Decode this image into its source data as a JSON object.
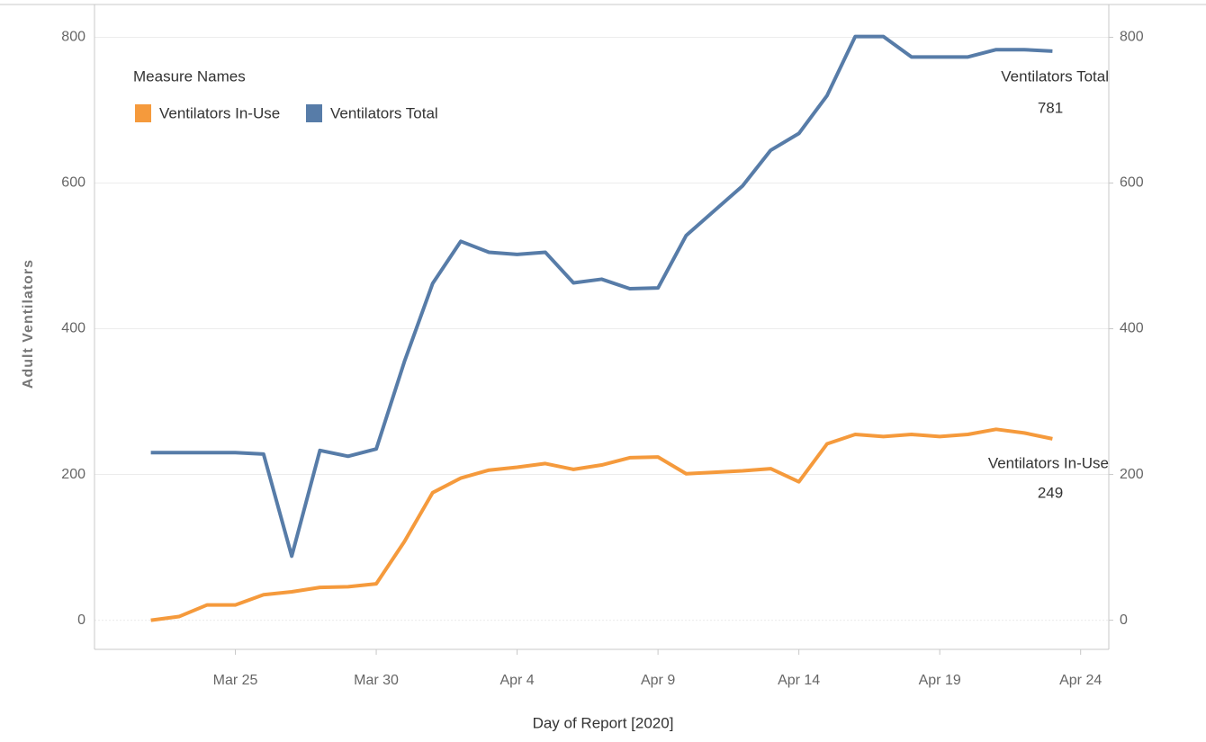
{
  "chart_data": {
    "type": "line",
    "x_label": "Day of Report [2020]",
    "y_label": "Adult Ventilators",
    "legend_title": "Measure Names",
    "legend": "top-left",
    "grid": true,
    "x": [
      "2020-03-22",
      "2020-03-23",
      "2020-03-24",
      "2020-03-25",
      "2020-03-26",
      "2020-03-27",
      "2020-03-28",
      "2020-03-29",
      "2020-03-30",
      "2020-03-31",
      "2020-04-01",
      "2020-04-02",
      "2020-04-03",
      "2020-04-04",
      "2020-04-05",
      "2020-04-06",
      "2020-04-07",
      "2020-04-08",
      "2020-04-09",
      "2020-04-10",
      "2020-04-11",
      "2020-04-12",
      "2020-04-13",
      "2020-04-14",
      "2020-04-15",
      "2020-04-16",
      "2020-04-17",
      "2020-04-18",
      "2020-04-19",
      "2020-04-20",
      "2020-04-21",
      "2020-04-22",
      "2020-04-23"
    ],
    "xlim": [
      "2020-03-20",
      "2020-04-25"
    ],
    "xticks": [
      {
        "value": "2020-03-25",
        "label": "Mar 25"
      },
      {
        "value": "2020-03-30",
        "label": "Mar 30"
      },
      {
        "value": "2020-04-04",
        "label": "Apr 4"
      },
      {
        "value": "2020-04-09",
        "label": "Apr 9"
      },
      {
        "value": "2020-04-14",
        "label": "Apr 14"
      },
      {
        "value": "2020-04-19",
        "label": "Apr 19"
      },
      {
        "value": "2020-04-24",
        "label": "Apr 24"
      }
    ],
    "ylim": [
      -40,
      845
    ],
    "yticks": [
      0,
      200,
      400,
      600,
      800
    ],
    "y2lim": [
      -40,
      845
    ],
    "y2ticks": [
      0,
      200,
      400,
      600,
      800
    ],
    "series": [
      {
        "name": "Ventilators In-Use",
        "color": "#f59a3c",
        "values": [
          0,
          5,
          21,
          21,
          35,
          39,
          45,
          46,
          50,
          108,
          175,
          195,
          206,
          210,
          215,
          207,
          213,
          223,
          224,
          201,
          203,
          205,
          208,
          190,
          242,
          255,
          252,
          255,
          252,
          255,
          262,
          257,
          249
        ]
      },
      {
        "name": "Ventilators Total",
        "color": "#577ca8",
        "values": [
          230,
          230,
          230,
          230,
          228,
          88,
          233,
          225,
          235,
          355,
          462,
          520,
          505,
          502,
          505,
          463,
          468,
          455,
          456,
          528,
          562,
          596,
          645,
          668,
          720,
          801,
          801,
          773,
          773,
          773,
          783,
          783,
          781
        ]
      }
    ]
  }
}
